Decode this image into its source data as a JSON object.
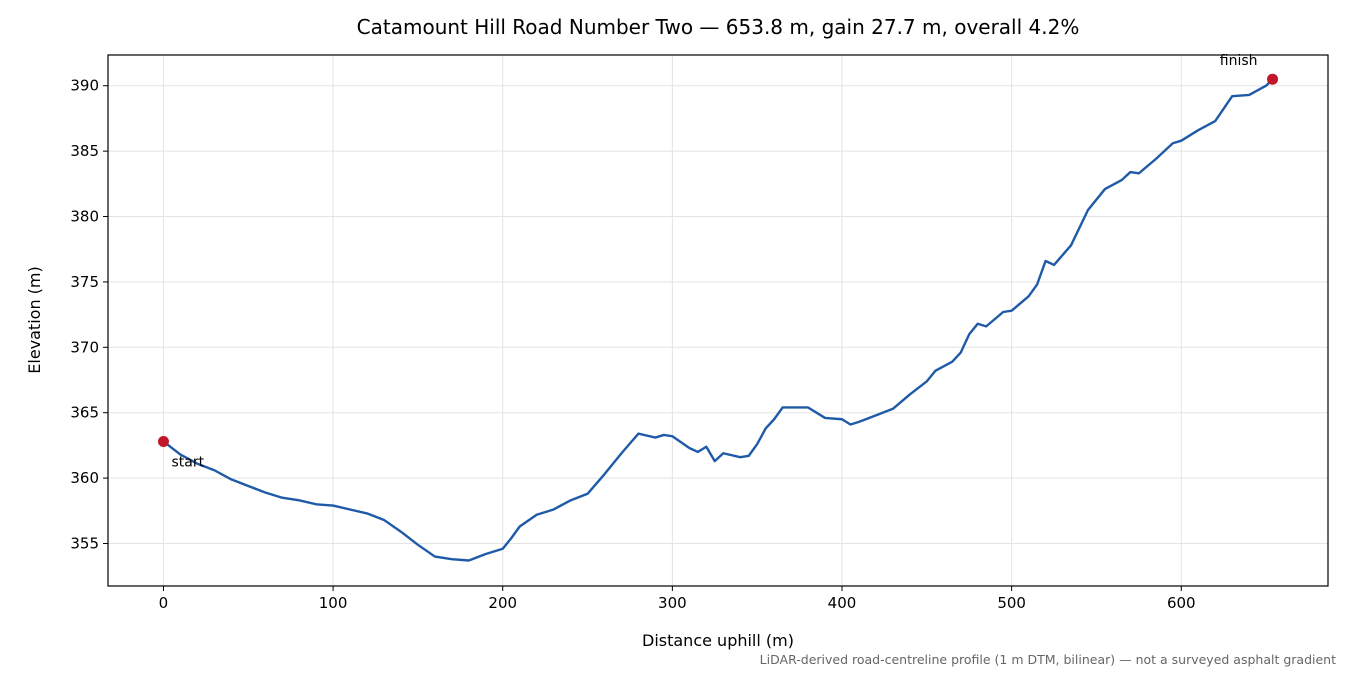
{
  "chart_data": {
    "type": "line",
    "title": "Catamount Hill Road Number Two — 653.8 m, gain 27.7 m, overall 4.2%",
    "x_label": "Distance uphill (m)",
    "y_label": "Elevation (m)",
    "footnote": "LiDAR-derived road-centreline profile (1 m DTM, bilinear) — not a surveyed asphalt gradient",
    "xlim": [
      -32.69,
      686.49
    ],
    "ylim": [
      351.75,
      392.35
    ],
    "xticks": [
      0,
      100,
      200,
      300,
      400,
      500,
      600
    ],
    "yticks": [
      355,
      360,
      365,
      370,
      375,
      380,
      385,
      390
    ],
    "grid": true,
    "x": [
      0,
      10,
      20,
      30,
      40,
      50,
      60,
      70,
      80,
      90,
      100,
      110,
      120,
      130,
      140,
      150,
      160,
      170,
      180,
      190,
      200,
      205,
      210,
      220,
      230,
      240,
      250,
      260,
      270,
      280,
      290,
      295,
      300,
      310,
      315,
      320,
      325,
      330,
      340,
      345,
      350,
      355,
      360,
      365,
      380,
      390,
      400,
      405,
      410,
      420,
      430,
      440,
      450,
      455,
      465,
      470,
      475,
      480,
      485,
      495,
      500,
      510,
      515,
      520,
      525,
      535,
      545,
      555,
      565,
      570,
      575,
      585,
      595,
      600,
      610,
      620,
      630,
      640,
      650,
      653.8
    ],
    "series": [
      {
        "name": "Elevation",
        "color": "#1f5aa8",
        "values": [
          362.8,
          361.8,
          361.1,
          360.6,
          359.9,
          359.4,
          358.9,
          358.5,
          358.3,
          358.0,
          357.9,
          357.6,
          357.3,
          356.8,
          355.9,
          354.9,
          354.0,
          353.8,
          353.7,
          354.2,
          354.6,
          355.4,
          356.3,
          357.2,
          357.6,
          358.3,
          358.8,
          360.3,
          361.9,
          363.4,
          363.1,
          363.3,
          363.2,
          362.3,
          362.0,
          362.4,
          361.3,
          361.9,
          361.6,
          361.7,
          362.6,
          363.8,
          364.5,
          365.4,
          365.4,
          364.6,
          364.5,
          364.1,
          364.3,
          364.8,
          365.3,
          366.4,
          367.4,
          368.2,
          368.9,
          369.6,
          371.0,
          371.8,
          371.6,
          372.7,
          372.8,
          373.9,
          374.8,
          376.6,
          376.3,
          377.8,
          380.5,
          382.1,
          382.8,
          383.4,
          383.3,
          384.4,
          385.6,
          385.8,
          386.6,
          387.3,
          389.2,
          389.3,
          390.0,
          390.5
        ]
      }
    ],
    "endpoints": {
      "color": "#c0182a",
      "x": [
        0,
        653.8
      ],
      "y": [
        362.8,
        390.5
      ],
      "labels": [
        "start",
        "finish"
      ]
    }
  }
}
